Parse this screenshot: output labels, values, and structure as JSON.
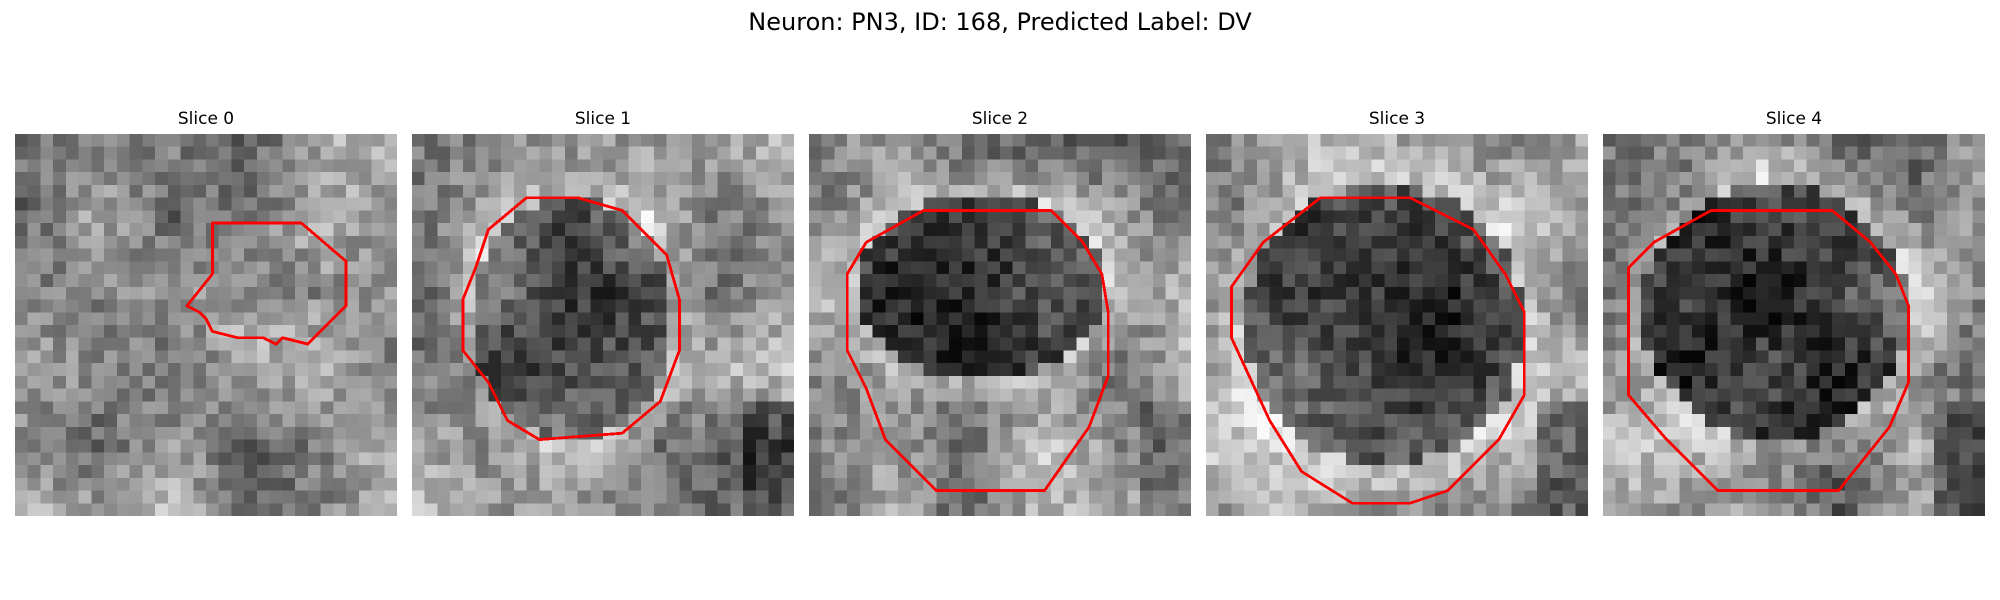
{
  "figure": {
    "title": "Neuron: PN3, ID: 168, Predicted Label: DV"
  },
  "panels": [
    {
      "title": "Slice 0",
      "kind": "lowcontrast"
    },
    {
      "title": "Slice 1",
      "kind": "blobsmall"
    },
    {
      "title": "Slice 2",
      "kind": "nucleus"
    },
    {
      "title": "Slice 3",
      "kind": "nucleus"
    },
    {
      "title": "Slice 4",
      "kind": "nucleus"
    }
  ],
  "colors": {
    "contour": "#ff0000",
    "background": "#ffffff"
  }
}
